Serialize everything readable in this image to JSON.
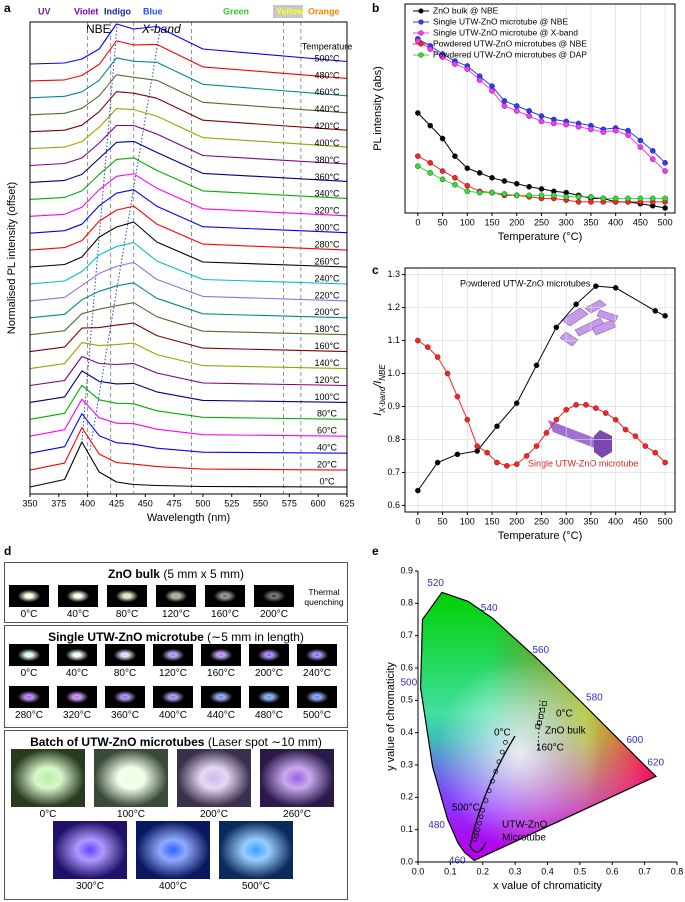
{
  "chart_data": [
    {
      "type": "offset_line",
      "panel_label": "a",
      "x_label": "Wavelength (nm)",
      "y_label": "Normalised PL intensity (offset)",
      "x": [
        350,
        380,
        395,
        410,
        425,
        440,
        460,
        500,
        625
      ],
      "xlim": [
        350,
        625
      ],
      "xticks": [
        350,
        375,
        400,
        425,
        450,
        475,
        500,
        525,
        550,
        575,
        600,
        625
      ],
      "reference_lines": [
        400,
        420,
        440,
        490,
        570,
        585
      ],
      "region_labels": [
        "UV",
        "Violet",
        "Indigo",
        "Blue",
        "Green",
        "Yellow",
        "Orange"
      ],
      "peak_labels": [
        "NBE",
        "X-band"
      ],
      "legend_title": "Temperature",
      "series": [
        {
          "name": "0°C",
          "color": "#000000",
          "values": [
            0,
            0.15,
            0.9,
            0.3,
            0.1,
            0.05,
            0.03,
            0.01,
            0
          ]
        },
        {
          "name": "20°C",
          "color": "#ff0000",
          "values": [
            0,
            0.14,
            0.85,
            0.32,
            0.15,
            0.12,
            0.07,
            0.02,
            0
          ]
        },
        {
          "name": "40°C",
          "color": "#0000ff",
          "values": [
            0,
            0.13,
            0.79,
            0.35,
            0.21,
            0.18,
            0.1,
            0.02,
            0
          ]
        },
        {
          "name": "60°C",
          "color": "#ff00ff",
          "values": [
            0,
            0.13,
            0.74,
            0.37,
            0.26,
            0.25,
            0.14,
            0.03,
            0
          ]
        },
        {
          "name": "80°C",
          "color": "#00b000",
          "values": [
            0,
            0.12,
            0.68,
            0.39,
            0.32,
            0.31,
            0.17,
            0.04,
            0
          ]
        },
        {
          "name": "100°C",
          "color": "#000080",
          "values": [
            0,
            0.11,
            0.63,
            0.42,
            0.37,
            0.38,
            0.21,
            0.04,
            0
          ]
        },
        {
          "name": "120°C",
          "color": "#800080",
          "values": [
            0,
            0.1,
            0.58,
            0.44,
            0.42,
            0.44,
            0.25,
            0.05,
            0
          ]
        },
        {
          "name": "140°C",
          "color": "#a0a000",
          "values": [
            0,
            0.1,
            0.52,
            0.46,
            0.48,
            0.51,
            0.28,
            0.06,
            0
          ]
        },
        {
          "name": "160°C",
          "color": "#800000",
          "values": [
            0,
            0.09,
            0.47,
            0.48,
            0.53,
            0.57,
            0.32,
            0.07,
            0
          ]
        },
        {
          "name": "180°C",
          "color": "#556b2f",
          "values": [
            0,
            0.08,
            0.42,
            0.51,
            0.58,
            0.64,
            0.36,
            0.07,
            0
          ]
        },
        {
          "name": "200°C",
          "color": "#008b8b",
          "values": [
            0,
            0.07,
            0.36,
            0.53,
            0.64,
            0.7,
            0.39,
            0.08,
            0
          ]
        },
        {
          "name": "220°C",
          "color": "#9370db",
          "values": [
            0,
            0.07,
            0.31,
            0.55,
            0.69,
            0.77,
            0.43,
            0.09,
            0
          ]
        },
        {
          "name": "240°C",
          "color": "#00bcd4",
          "values": [
            0,
            0.06,
            0.25,
            0.58,
            0.75,
            0.83,
            0.46,
            0.09,
            0
          ]
        },
        {
          "name": "260°C",
          "color": "#000000",
          "values": [
            0,
            0.05,
            0.2,
            0.6,
            0.8,
            0.9,
            0.5,
            0.1,
            0
          ]
        },
        {
          "name": "280°C",
          "color": "#ff0000",
          "values": [
            0,
            0.05,
            0.19,
            0.58,
            0.8,
            0.88,
            0.52,
            0.12,
            0
          ]
        },
        {
          "name": "300°C",
          "color": "#0000ff",
          "values": [
            0,
            0.05,
            0.18,
            0.55,
            0.8,
            0.87,
            0.54,
            0.13,
            0.01
          ]
        },
        {
          "name": "320°C",
          "color": "#ff00ff",
          "values": [
            0,
            0.04,
            0.18,
            0.53,
            0.8,
            0.85,
            0.56,
            0.15,
            0.01
          ]
        },
        {
          "name": "340°C",
          "color": "#00b000",
          "values": [
            0,
            0.04,
            0.17,
            0.5,
            0.8,
            0.83,
            0.58,
            0.17,
            0.02
          ]
        },
        {
          "name": "360°C",
          "color": "#000080",
          "values": [
            0,
            0.04,
            0.16,
            0.48,
            0.8,
            0.82,
            0.6,
            0.18,
            0.02
          ]
        },
        {
          "name": "380°C",
          "color": "#800080",
          "values": [
            0,
            0.04,
            0.15,
            0.45,
            0.8,
            0.8,
            0.63,
            0.2,
            0.03
          ]
        },
        {
          "name": "400°C",
          "color": "#a0a000",
          "values": [
            0,
            0.03,
            0.14,
            0.43,
            0.8,
            0.78,
            0.65,
            0.22,
            0.03
          ]
        },
        {
          "name": "420°C",
          "color": "#800000",
          "values": [
            0,
            0.03,
            0.13,
            0.4,
            0.8,
            0.77,
            0.67,
            0.23,
            0.03
          ]
        },
        {
          "name": "440°C",
          "color": "#556b2f",
          "values": [
            0,
            0.03,
            0.13,
            0.38,
            0.8,
            0.75,
            0.69,
            0.25,
            0.04
          ]
        },
        {
          "name": "460°C",
          "color": "#008b8b",
          "values": [
            0,
            0.03,
            0.12,
            0.35,
            0.8,
            0.73,
            0.71,
            0.27,
            0.04
          ]
        },
        {
          "name": "480°C",
          "color": "#ff0000",
          "values": [
            0,
            0.02,
            0.11,
            0.33,
            0.8,
            0.72,
            0.73,
            0.28,
            0.05
          ]
        },
        {
          "name": "500°C",
          "color": "#0000ff",
          "values": [
            0,
            0.02,
            0.1,
            0.3,
            0.8,
            0.7,
            0.75,
            0.3,
            0.05
          ]
        }
      ]
    },
    {
      "type": "line",
      "panel_label": "b",
      "x_label": "Temperature (°C)",
      "y_label": "PL intensity (abs)",
      "log": true,
      "grid": true,
      "legend": "upper left",
      "x": [
        0,
        25,
        50,
        75,
        100,
        125,
        150,
        175,
        200,
        225,
        250,
        275,
        300,
        325,
        350,
        375,
        400,
        425,
        450,
        475,
        500
      ],
      "xlim": [
        -26,
        520
      ],
      "xticks": [
        0,
        50,
        100,
        150,
        200,
        250,
        300,
        350,
        400,
        450,
        500
      ],
      "ylim": [
        1,
        2000
      ],
      "series": [
        {
          "name": "ZnO bulk @ NBE",
          "color": "#000000",
          "values": [
            38,
            24,
            15,
            7.9,
            5.1,
            4.3,
            3.6,
            3.2,
            2.9,
            2.6,
            2.4,
            2.2,
            2.1,
            1.9,
            1.7,
            1.7,
            1.5,
            1.5,
            1.4,
            1.3,
            1.2
          ]
        },
        {
          "name": "Single UTW-ZnO microtube @ NBE",
          "color": "#2a3bff",
          "values": [
            562,
            436,
            325,
            251,
            210,
            145,
            101,
            59,
            49,
            41,
            34,
            30,
            28,
            26,
            24,
            21,
            22,
            20,
            14,
            9.6,
            6.2
          ]
        },
        {
          "name": "Single UTW-ZnO microtube @ X-band",
          "color": "#ff33ff",
          "values": [
            521,
            389,
            290,
            225,
            188,
            126,
            85,
            49,
            41,
            34,
            28,
            26,
            25,
            23,
            21,
            19,
            20,
            17,
            11,
            7.1,
            4.6
          ]
        },
        {
          "name": "Powdered UTW-ZnO microtubes @ NBE",
          "color": "#ff2020",
          "values": [
            7.9,
            6.2,
            4.6,
            3.6,
            2.7,
            2.2,
            2.1,
            1.9,
            1.9,
            1.8,
            1.7,
            1.7,
            1.6,
            1.5,
            1.5,
            1.5,
            1.5,
            1.5,
            1.5,
            1.5,
            1.5
          ]
        },
        {
          "name": "Powdered UTW-ZnO microtubes @ DAP",
          "color": "#33dd33",
          "values": [
            5.5,
            4.3,
            3.4,
            2.8,
            2.2,
            2.1,
            2.1,
            2.0,
            1.9,
            1.9,
            1.9,
            1.9,
            1.8,
            1.8,
            1.8,
            1.7,
            1.7,
            1.7,
            1.7,
            1.7,
            1.7
          ]
        }
      ]
    },
    {
      "type": "line",
      "panel_label": "c",
      "x_label": "Temperature (°C)",
      "y_label": [
        "I",
        "X-band",
        "/I",
        "NBE"
      ],
      "grid": true,
      "xlim": [
        -26,
        520
      ],
      "xticks": [
        0,
        50,
        100,
        150,
        200,
        250,
        300,
        350,
        400,
        450,
        500
      ],
      "ylim": [
        0.58,
        1.32
      ],
      "yticks": [
        0.6,
        0.7,
        0.8,
        0.9,
        {
          "value": 1,
          "label": "1.0"
        },
        1.1,
        1.2,
        1.3
      ],
      "annotations": [
        "Powdered UTW-ZnO microtubes",
        "Single UTW-ZnO microtube"
      ],
      "series": [
        {
          "color": "#000000",
          "x": [
            0,
            40,
            80,
            120,
            160,
            200,
            240,
            280,
            320,
            360,
            400,
            480,
            500
          ],
          "values": [
            0.645,
            0.73,
            0.755,
            0.765,
            0.84,
            0.91,
            1.025,
            1.14,
            1.21,
            1.265,
            1.26,
            1.19,
            1.175
          ]
        },
        {
          "color": "#ff2020",
          "x": [
            0,
            20,
            40,
            60,
            80,
            100,
            120,
            140,
            160,
            180,
            200,
            220,
            240,
            260,
            280,
            300,
            320,
            340,
            360,
            380,
            400,
            420,
            440,
            460,
            480,
            500
          ],
          "values": [
            1.1,
            1.08,
            1.05,
            1.0,
            0.93,
            0.86,
            0.78,
            0.76,
            0.73,
            0.72,
            0.725,
            0.75,
            0.78,
            0.82,
            0.86,
            0.89,
            0.905,
            0.905,
            0.895,
            0.88,
            0.86,
            0.83,
            0.81,
            0.78,
            0.76,
            0.73
          ]
        }
      ]
    },
    {
      "type": "chromaticity",
      "panel_label": "e",
      "x_label": "x value of chromaticity",
      "y_label": "y value of chromaticity",
      "xlim": [
        0,
        0.8
      ],
      "xticks": [
        {
          "value": 0,
          "label": "0.0"
        },
        0.1,
        0.2,
        0.3,
        0.4,
        0.5,
        0.6,
        0.7,
        0.8
      ],
      "ylim": [
        0,
        0.9
      ],
      "yticks": [
        {
          "value": 0,
          "label": "0.0"
        },
        0.1,
        0.2,
        0.3,
        0.4,
        0.5,
        0.6,
        0.7,
        0.8,
        0.9
      ],
      "locus": {
        "labels": [
          null,
          "460",
          null,
          "480",
          null,
          "500",
          null,
          "520",
          null,
          "540",
          "560",
          "580",
          "600",
          "620",
          null
        ],
        "x": [
          0.174,
          0.144,
          0.124,
          0.091,
          0.045,
          0.008,
          0.014,
          0.074,
          0.155,
          0.23,
          0.373,
          0.512,
          0.627,
          0.691,
          0.735
        ],
        "y": [
          0.005,
          0.03,
          0.058,
          0.133,
          0.295,
          0.538,
          0.75,
          0.834,
          0.806,
          0.754,
          0.624,
          0.487,
          0.372,
          0.308,
          0.265
        ]
      },
      "annotations": [
        "0°C",
        "ZnO bulk",
        "160°C",
        "0°C",
        "500°C",
        "UTW-ZnO",
        "Microtube"
      ],
      "series": [
        {
          "marker": "circle",
          "color": "#000000",
          "x": [
            0.27,
            0.26,
            0.25,
            0.24,
            0.23,
            0.22,
            0.21,
            0.2,
            0.195,
            0.19,
            0.185,
            0.18,
            0.18,
            0.175
          ],
          "values": [
            0.37,
            0.34,
            0.31,
            0.28,
            0.25,
            0.22,
            0.19,
            0.16,
            0.14,
            0.12,
            0.1,
            0.09,
            0.08,
            0.07
          ]
        },
        {
          "marker": "square",
          "color": "#000000",
          "x": [
            0.39,
            0.385,
            0.38,
            0.375,
            0.37
          ],
          "values": [
            0.49,
            0.47,
            0.45,
            0.43,
            0.42
          ]
        }
      ]
    }
  ],
  "photo_panel": {
    "label": "d",
    "sections": [
      {
        "title": "ZnO bulk",
        "detail": "(5 mm x 5 mm)",
        "note": "Thermal quenching",
        "photos": [
          "0°C",
          "40°C",
          "80°C",
          "120°C",
          "160°C",
          "200°C"
        ]
      },
      {
        "title": "Single UTW-ZnO microtube",
        "detail": "(∼5 mm in length)",
        "photos": [
          "0°C",
          "40°C",
          "80°C",
          "120°C",
          "160°C",
          "200°C",
          "240°C",
          "280°C",
          "320°C",
          "360°C",
          "400°C",
          "440°C",
          "480°C",
          "500°C"
        ]
      },
      {
        "title": "Batch of UTW-ZnO microtubes",
        "detail": "(Laser spot ∼10 mm)",
        "photos": [
          "0°C",
          "100°C",
          "200°C",
          "260°C",
          "300°C",
          "400°C",
          "500°C"
        ]
      }
    ]
  }
}
